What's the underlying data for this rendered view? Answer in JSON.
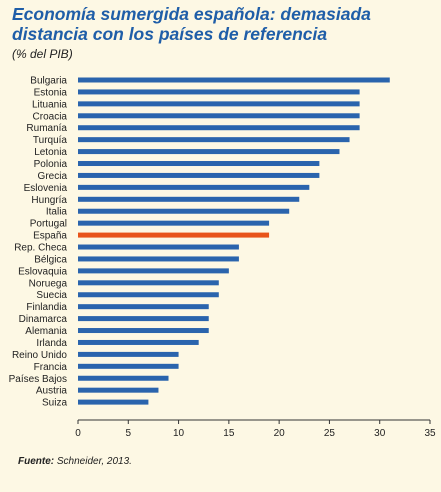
{
  "title": "Economía sumergida española: demasiada distancia con los países de referencia",
  "subtitle": "(% del PIB)",
  "source": {
    "label": "Fuente:",
    "text": "Schneider, 2013."
  },
  "colors": {
    "bar": "#2a64ad",
    "highlight": "#e8541a",
    "axis": "#333333",
    "grid": "#777777"
  },
  "chart_data": {
    "type": "bar",
    "orientation": "horizontal",
    "categories": [
      "Bulgaria",
      "Estonia",
      "Lituania",
      "Croacia",
      "Rumanía",
      "Turquía",
      "Letonia",
      "Polonia",
      "Grecia",
      "Eslovenia",
      "Hungría",
      "Italia",
      "Portugal",
      "España",
      "Rep. Checa",
      "Bélgica",
      "Eslovaquia",
      "Noruega",
      "Suecia",
      "Finlandia",
      "Dinamarca",
      "Alemania",
      "Irlanda",
      "Reino Unido",
      "Francia",
      "Países Bajos",
      "Austria",
      "Suiza"
    ],
    "values": [
      31,
      28,
      28,
      28,
      28,
      27,
      26,
      24,
      24,
      23,
      22,
      21,
      19,
      19,
      16,
      16,
      15,
      14,
      14,
      13,
      13,
      13,
      12,
      10,
      10,
      9,
      8,
      7
    ],
    "highlight": "España",
    "xlim": [
      0,
      35
    ],
    "xticks": [
      0,
      5,
      10,
      15,
      20,
      25,
      30,
      35
    ],
    "grid": false,
    "legend": "none"
  }
}
